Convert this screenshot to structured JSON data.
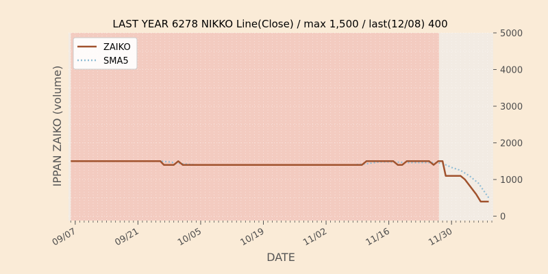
{
  "chart_data": {
    "type": "line",
    "title": "LAST YEAR 6278 NIKKO Line(Close) / max 1,500 / last(12/08) 400",
    "xlabel": "DATE",
    "ylabel": "IPPAN ZAIKO (volume)",
    "x_tick_labels": [
      "09/07",
      "09/21",
      "10/05",
      "10/19",
      "11/02",
      "11/16",
      "11/30"
    ],
    "y_tick_labels": [
      "0",
      "1000",
      "2000",
      "3000",
      "4000",
      "5000"
    ],
    "y_ticks": [
      0,
      1000,
      2000,
      3000,
      4000,
      5000
    ],
    "ylim": [
      -120,
      5000
    ],
    "x_start_date": "2020-09-06",
    "x_range_days": [
      -0.5,
      94.3
    ],
    "shaded_until_day": 82.2,
    "grid": true,
    "legend_position": "top-left",
    "series": [
      {
        "name": "ZAIKO",
        "color": "#a0522d",
        "style": "solid",
        "points": [
          [
            0,
            1500
          ],
          [
            20,
            1500
          ],
          [
            20.8,
            1400
          ],
          [
            23,
            1400
          ],
          [
            24,
            1500
          ],
          [
            25,
            1400
          ],
          [
            65,
            1400
          ],
          [
            66,
            1500
          ],
          [
            72,
            1500
          ],
          [
            73,
            1400
          ],
          [
            74,
            1400
          ],
          [
            75,
            1500
          ],
          [
            80,
            1500
          ],
          [
            81,
            1400
          ],
          [
            82,
            1500
          ],
          [
            83,
            1500
          ],
          [
            83.7,
            1100
          ],
          [
            87,
            1100
          ],
          [
            88,
            1000
          ],
          [
            90.5,
            600
          ],
          [
            91.5,
            400
          ],
          [
            93.3,
            400
          ]
        ]
      },
      {
        "name": "SMA5",
        "color": "#8fbcd4",
        "style": "dotted",
        "points": [
          [
            18,
            1500
          ],
          [
            20,
            1500
          ],
          [
            22,
            1480
          ],
          [
            24,
            1440
          ],
          [
            26,
            1420
          ],
          [
            28,
            1400
          ],
          [
            63,
            1400
          ],
          [
            66,
            1430
          ],
          [
            69,
            1480
          ],
          [
            72,
            1480
          ],
          [
            75,
            1460
          ],
          [
            78,
            1460
          ],
          [
            81,
            1460
          ],
          [
            83,
            1440
          ],
          [
            85,
            1330
          ],
          [
            87,
            1250
          ],
          [
            89,
            1100
          ],
          [
            91,
            900
          ],
          [
            93.3,
            500
          ]
        ]
      }
    ]
  }
}
